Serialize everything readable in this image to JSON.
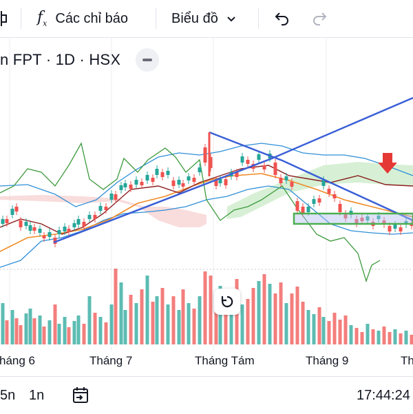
{
  "toolbar": {
    "indicators_label": "Các chỉ báo",
    "chart_type_label": "Biểu đồ"
  },
  "symbol": {
    "title": "n FPT · 1D · HSX"
  },
  "xaxis": {
    "labels": [
      "háng 6",
      "Tháng 7",
      "Tháng Tám",
      "Tháng 9",
      "Th"
    ]
  },
  "bottom": {
    "range_5": "5n",
    "range_1": "1n",
    "time": "17:44:24"
  },
  "colors": {
    "up": "#26a69a",
    "down": "#ef5350",
    "trendline": "#3a5fd6",
    "bb": "#2f8fd8",
    "kumo_green": "#cdeccb",
    "kumo_red": "#f7d3d3"
  }
}
